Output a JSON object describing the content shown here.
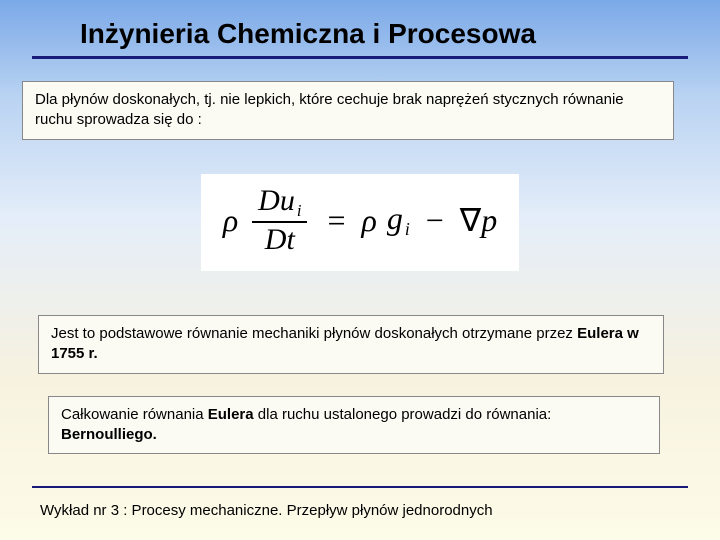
{
  "title": "Inżynieria Chemiczna i Procesowa",
  "box1": "Dla płynów doskonałych, tj. nie lepkich, które cechuje brak naprężeń stycznych równanie ruchu sprowadza się do :",
  "equation": {
    "rho1": "ρ",
    "num": "Du",
    "num_sub": "i",
    "den": "Dt",
    "eq": "=",
    "rho2": "ρ",
    "g": "g",
    "g_sub": "i",
    "minus": "−",
    "nabla": "∇",
    "p": "p"
  },
  "box2_pre": "Jest to podstawowe równanie mechaniki płynów doskonałych otrzymane przez ",
  "box2_bold": "Eulera w 1755 r.",
  "box3_pre": "Całkowanie równania ",
  "box3_bold1": "Eulera",
  "box3_mid": " dla ruchu ustalonego prowadzi do równania: ",
  "box3_bold2": "Bernoulliego.",
  "footer": "Wykład nr 3  : Procesy mechaniczne.  Przepływ płynów jednorodnych",
  "colors": {
    "rule": "#1a1a7a",
    "box_bg": "#fbfbf4",
    "box_border": "#888888",
    "bg_top": "#7ba9e8",
    "bg_bottom": "#fdfce8"
  }
}
